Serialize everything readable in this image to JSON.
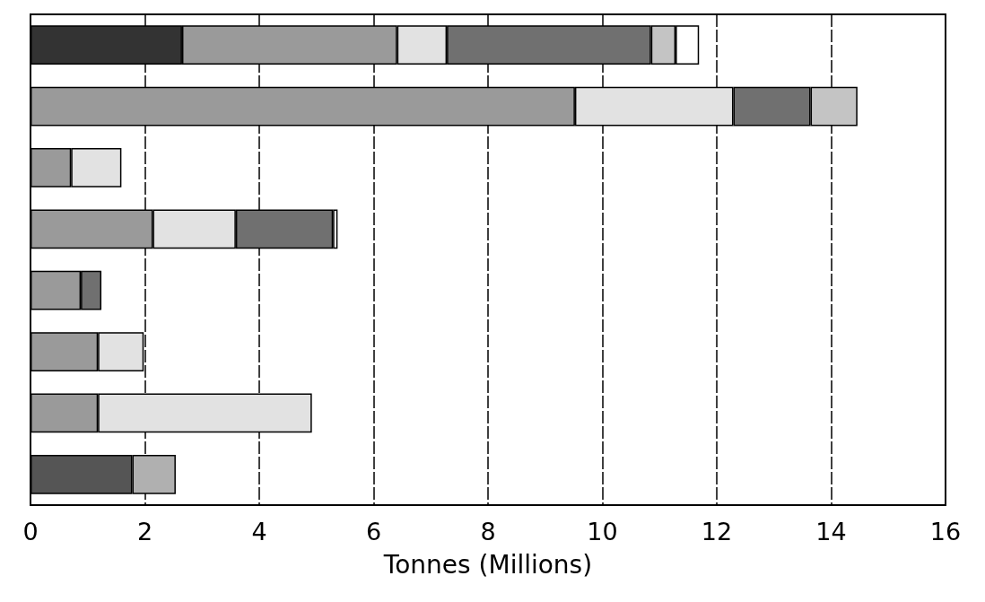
{
  "chart_data": {
    "type": "bar",
    "orientation": "horizontal",
    "stacked": true,
    "xlabel": "Tonnes (Millions)",
    "categories": [
      null,
      null,
      null,
      null,
      null,
      null,
      null,
      null
    ],
    "series": [
      {
        "color": "#333333",
        "values": [
          2.65,
          null,
          null,
          null,
          null,
          null,
          null,
          null
        ]
      },
      {
        "color": "#9a9a9a",
        "values": [
          3.76,
          9.52,
          0.71,
          2.14,
          0.88,
          1.18,
          1.18,
          null
        ]
      },
      {
        "color": "#e2e2e2",
        "values": [
          0.87,
          2.77,
          0.88,
          1.45,
          null,
          0.8,
          3.74,
          null
        ]
      },
      {
        "color": "#707070",
        "values": [
          3.57,
          1.35,
          null,
          1.7,
          0.36,
          null,
          null,
          null
        ]
      },
      {
        "color": "#c4c4c4",
        "values": [
          0.43,
          0.82,
          null,
          null,
          null,
          null,
          null,
          null
        ]
      },
      {
        "color": "#ffffff",
        "values": [
          0.41,
          null,
          null,
          0.08,
          null,
          null,
          null,
          null
        ]
      },
      {
        "color": "#555555",
        "values": [
          null,
          null,
          null,
          null,
          null,
          null,
          null,
          1.78
        ]
      },
      {
        "color": "#b0b0b0",
        "values": [
          null,
          null,
          null,
          null,
          null,
          null,
          null,
          0.76
        ]
      }
    ],
    "xlim": [
      0,
      16
    ],
    "xticks": [
      0,
      2,
      4,
      6,
      8,
      10,
      12,
      14,
      16
    ],
    "grid": "x"
  }
}
